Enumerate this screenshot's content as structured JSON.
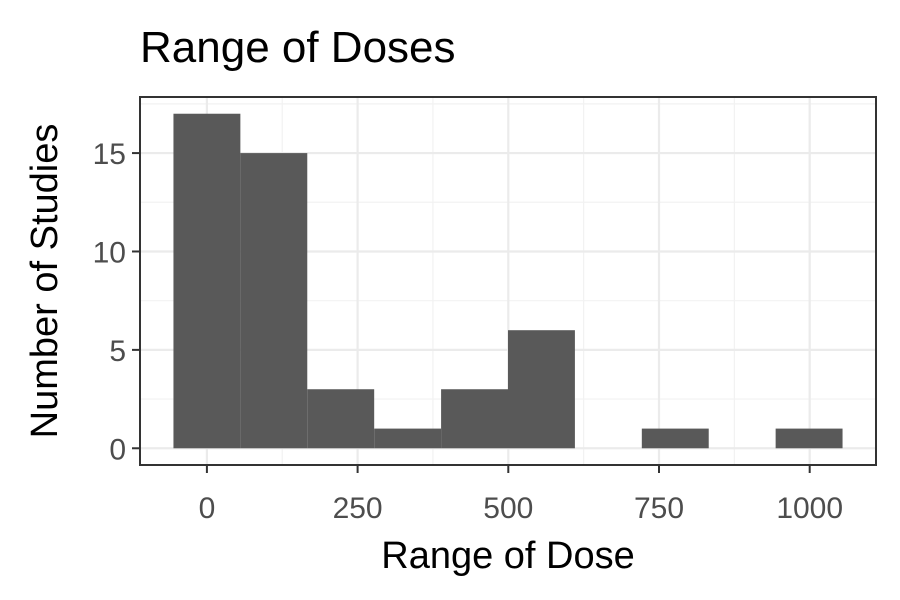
{
  "chart_data": {
    "type": "bar",
    "title": "Range of Doses",
    "xlabel": "Range of Dose",
    "ylabel": "Number of Studies",
    "bin_width": 111,
    "bins": [
      {
        "x_center": 0,
        "count": 17
      },
      {
        "x_center": 111,
        "count": 15
      },
      {
        "x_center": 222,
        "count": 3
      },
      {
        "x_center": 333,
        "count": 1
      },
      {
        "x_center": 444,
        "count": 3
      },
      {
        "x_center": 555,
        "count": 6
      },
      {
        "x_center": 666,
        "count": 0
      },
      {
        "x_center": 777,
        "count": 1
      },
      {
        "x_center": 888,
        "count": 0
      },
      {
        "x_center": 999,
        "count": 1
      }
    ],
    "xlim": [
      -111,
      1110
    ],
    "ylim": [
      -0.85,
      17.85
    ],
    "x_ticks": [
      0,
      250,
      500,
      750,
      1000
    ],
    "x_tick_labels": [
      "0",
      "250",
      "500",
      "750",
      "1000"
    ],
    "y_ticks": [
      0,
      5,
      10,
      15
    ],
    "y_tick_labels": [
      "0",
      "5",
      "10",
      "15"
    ],
    "grid": true,
    "colors": {
      "bar": "#595959",
      "panel_border": "#333333",
      "grid": "#ebebeb"
    }
  }
}
